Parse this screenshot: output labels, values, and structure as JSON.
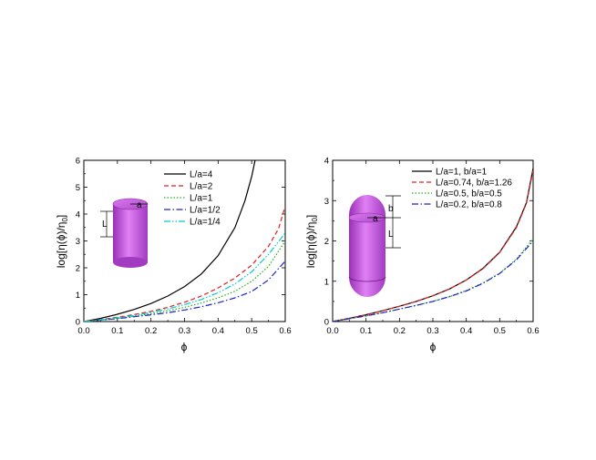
{
  "chart_data": [
    {
      "type": "line",
      "title": "",
      "xlabel": "ϕ",
      "ylabel": "log[η(ϕ)/η0]",
      "ylabel_parts": {
        "main": "log[η(ϕ)/η",
        "sub": "0",
        "end": "]"
      },
      "xlim": [
        0.0,
        0.6
      ],
      "ylim": [
        0,
        6
      ],
      "xticks": [
        "0.0",
        "0.1",
        "0.2",
        "0.3",
        "0.4",
        "0.5",
        "0.6"
      ],
      "yticks": [
        "0",
        "1",
        "2",
        "3",
        "4",
        "5",
        "6"
      ],
      "legend_position": "top-right",
      "inset": {
        "shape": "cylinder",
        "labels": [
          "a",
          "L"
        ]
      },
      "series": [
        {
          "name": "L/a=4",
          "color": "#000000",
          "dash": "solid",
          "x": [
            0,
            0.05,
            0.1,
            0.15,
            0.2,
            0.25,
            0.3,
            0.35,
            0.4,
            0.45,
            0.48,
            0.5,
            0.51
          ],
          "y": [
            0,
            0.12,
            0.27,
            0.45,
            0.67,
            0.95,
            1.3,
            1.77,
            2.45,
            3.5,
            4.5,
            5.4,
            6.0
          ]
        },
        {
          "name": "L/a=2",
          "color": "#e02020",
          "dash": "dashed",
          "x": [
            0,
            0.05,
            0.1,
            0.15,
            0.2,
            0.25,
            0.3,
            0.35,
            0.4,
            0.45,
            0.5,
            0.55,
            0.58,
            0.6
          ],
          "y": [
            0,
            0.07,
            0.16,
            0.26,
            0.38,
            0.53,
            0.72,
            0.95,
            1.25,
            1.62,
            2.1,
            2.8,
            3.45,
            4.3
          ]
        },
        {
          "name": "L/a=1",
          "color": "#20b020",
          "dash": "dotted",
          "x": [
            0,
            0.05,
            0.1,
            0.15,
            0.2,
            0.25,
            0.3,
            0.35,
            0.4,
            0.45,
            0.5,
            0.55,
            0.6
          ],
          "y": [
            0,
            0.055,
            0.12,
            0.2,
            0.29,
            0.4,
            0.53,
            0.69,
            0.88,
            1.13,
            1.5,
            2.05,
            3.0
          ]
        },
        {
          "name": "L/a=1/2",
          "color": "#2020cc",
          "dash": "dashdot",
          "x": [
            0,
            0.05,
            0.1,
            0.15,
            0.2,
            0.25,
            0.3,
            0.35,
            0.4,
            0.45,
            0.5,
            0.55,
            0.6
          ],
          "y": [
            0,
            0.05,
            0.11,
            0.18,
            0.25,
            0.33,
            0.43,
            0.55,
            0.7,
            0.88,
            1.12,
            1.55,
            2.25
          ]
        },
        {
          "name": "L/a=1/4",
          "color": "#00cccc",
          "dash": "dashdotdot",
          "x": [
            0,
            0.05,
            0.1,
            0.15,
            0.2,
            0.25,
            0.3,
            0.35,
            0.4,
            0.45,
            0.5,
            0.55,
            0.6
          ],
          "y": [
            0,
            0.065,
            0.14,
            0.23,
            0.34,
            0.47,
            0.63,
            0.82,
            1.07,
            1.4,
            1.85,
            2.5,
            3.3
          ]
        }
      ]
    },
    {
      "type": "line",
      "title": "",
      "xlabel": "ϕ",
      "ylabel": "log[η(ϕ)/η0]",
      "ylabel_parts": {
        "main": "log[η(ϕ)/η",
        "sub": "0",
        "end": "]"
      },
      "xlim": [
        0.0,
        0.6
      ],
      "ylim": [
        0,
        4
      ],
      "xticks": [
        "0.0",
        "0.1",
        "0.2",
        "0.3",
        "0.4",
        "0.5",
        "0.6"
      ],
      "yticks": [
        "0",
        "1",
        "2",
        "3",
        "4"
      ],
      "legend_position": "top-right",
      "inset": {
        "shape": "spherocylinder",
        "labels": [
          "b",
          "a",
          "L"
        ]
      },
      "series": [
        {
          "name": "L/a=1, b/a=1",
          "color": "#000000",
          "dash": "solid",
          "x": [
            0,
            0.05,
            0.1,
            0.15,
            0.2,
            0.25,
            0.3,
            0.35,
            0.4,
            0.45,
            0.5,
            0.55,
            0.58,
            0.6
          ],
          "y": [
            0,
            0.08,
            0.17,
            0.27,
            0.38,
            0.5,
            0.64,
            0.81,
            1.03,
            1.32,
            1.72,
            2.35,
            2.95,
            3.8
          ]
        },
        {
          "name": "L/a=0.74, b/a=1.26",
          "color": "#e02020",
          "dash": "dashed",
          "x": [
            0,
            0.05,
            0.1,
            0.15,
            0.2,
            0.25,
            0.3,
            0.35,
            0.4,
            0.45,
            0.5,
            0.55,
            0.58,
            0.6
          ],
          "y": [
            0,
            0.08,
            0.17,
            0.27,
            0.38,
            0.5,
            0.64,
            0.81,
            1.03,
            1.31,
            1.71,
            2.33,
            2.93,
            3.75
          ]
        },
        {
          "name": "L/a=0.5, b/a=0.5",
          "color": "#20b020",
          "dash": "dotted",
          "x": [
            0,
            0.05,
            0.1,
            0.15,
            0.2,
            0.25,
            0.3,
            0.35,
            0.4,
            0.45,
            0.5,
            0.55,
            0.6
          ],
          "y": [
            0,
            0.07,
            0.14,
            0.22,
            0.31,
            0.4,
            0.5,
            0.62,
            0.77,
            0.96,
            1.2,
            1.55,
            2.05
          ]
        },
        {
          "name": "L/a=0.2, b/a=0.8",
          "color": "#2020cc",
          "dash": "dashdot",
          "x": [
            0,
            0.05,
            0.1,
            0.15,
            0.2,
            0.25,
            0.3,
            0.35,
            0.4,
            0.45,
            0.5,
            0.55,
            0.6
          ],
          "y": [
            0,
            0.07,
            0.14,
            0.22,
            0.31,
            0.4,
            0.5,
            0.62,
            0.76,
            0.95,
            1.19,
            1.53,
            2.0
          ]
        }
      ]
    }
  ]
}
